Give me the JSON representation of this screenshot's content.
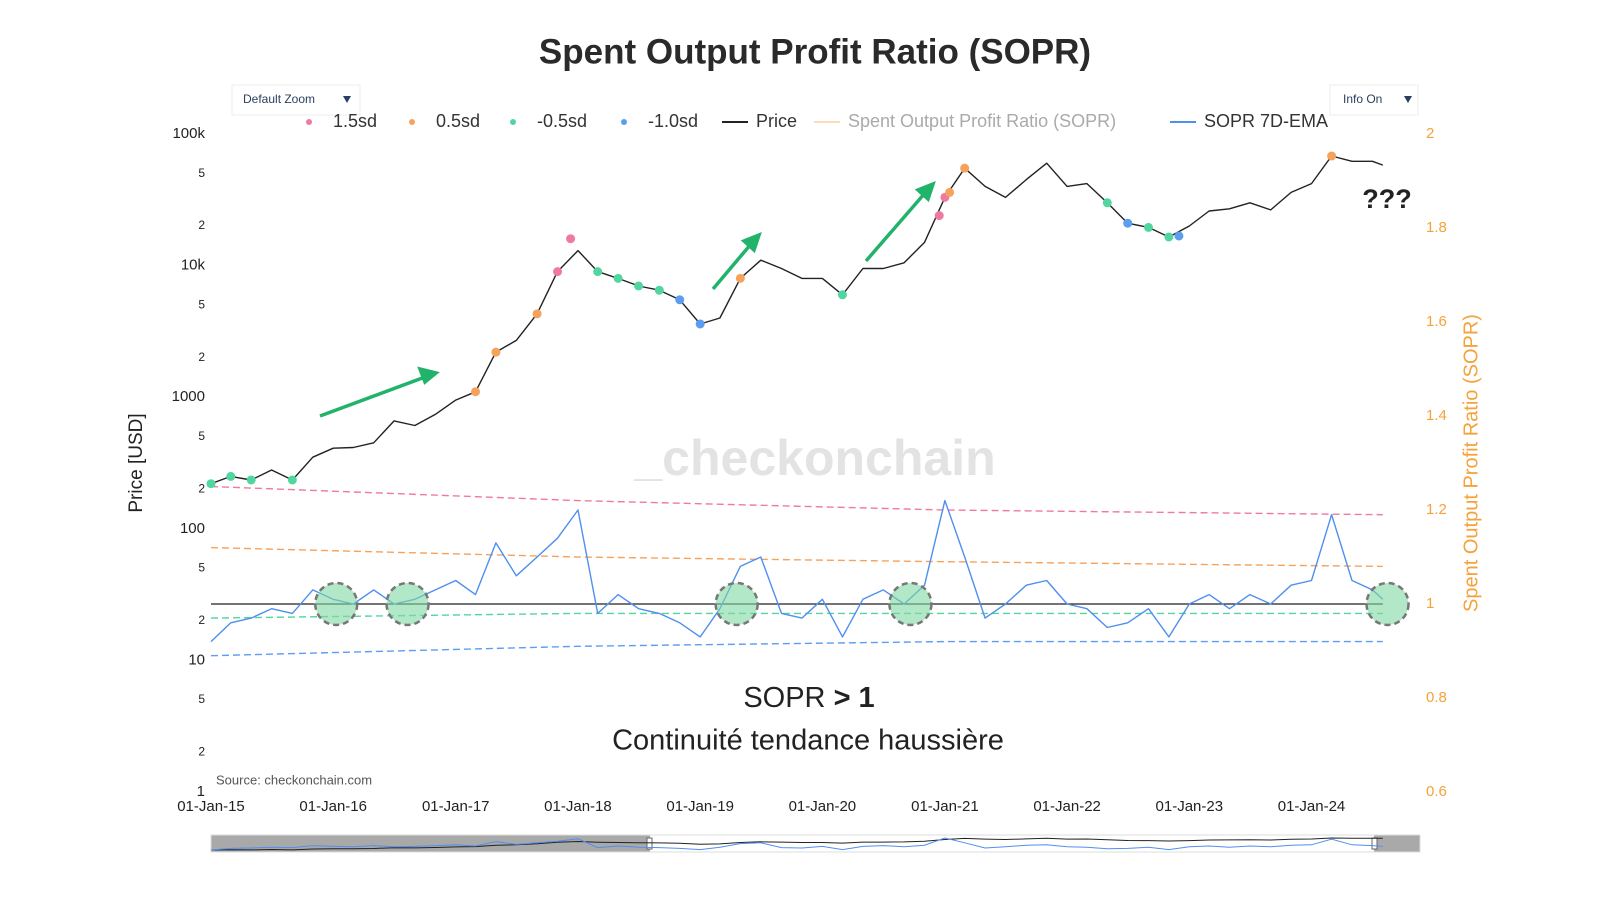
{
  "chart_data": {
    "type": "line",
    "title": "Spent Output Profit Ratio (SOPR)",
    "buttons": [
      "Default Zoom",
      "Info On"
    ],
    "yaxis_title": "Price [USD]",
    "y2axis_title": "Spent Output Profit Ratio (SOPR)",
    "source": "Source: checkonchain.com",
    "watermark": "_checkonchain",
    "annotations": {
      "question": "???",
      "sopr_label": "SOPR",
      "sopr_cond": "> 1",
      "trend": "Continuité tendance haussière"
    },
    "log_y": true,
    "xlim": [
      "2015-01-01",
      "2024-11-20"
    ],
    "xticks": [
      {
        "value": "2015-01-01",
        "label": "01-Jan-15"
      },
      {
        "value": "2016-01-01",
        "label": "01-Jan-16"
      },
      {
        "value": "2017-01-01",
        "label": "01-Jan-17"
      },
      {
        "value": "2018-01-01",
        "label": "01-Jan-18"
      },
      {
        "value": "2019-01-01",
        "label": "01-Jan-19"
      },
      {
        "value": "2020-01-01",
        "label": "01-Jan-20"
      },
      {
        "value": "2021-01-01",
        "label": "01-Jan-21"
      },
      {
        "value": "2022-01-01",
        "label": "01-Jan-22"
      },
      {
        "value": "2023-01-01",
        "label": "01-Jan-23"
      },
      {
        "value": "2024-01-01",
        "label": "01-Jan-24"
      }
    ],
    "ylim": [
      1,
      100000
    ],
    "yticks": [
      1,
      2,
      5,
      10,
      {
        "value": 20,
        "label": "2"
      },
      {
        "value": 50,
        "label": "5"
      },
      100,
      {
        "value": 200,
        "label": "2"
      },
      {
        "value": 500,
        "label": "5"
      },
      1000,
      {
        "value": 2000,
        "label": "2"
      },
      {
        "value": 5000,
        "label": "5"
      },
      {
        "value": 10000,
        "label": "10k"
      },
      {
        "value": 20000,
        "label": "2"
      },
      {
        "value": 50000,
        "label": "5"
      },
      {
        "value": 100000,
        "label": "100k"
      }
    ],
    "y2lim": [
      0.6,
      2
    ],
    "y2ticks": [
      0.6,
      0.8,
      1,
      1.2,
      1.4,
      1.6,
      1.8,
      2
    ],
    "y2_color": "#f5a23a",
    "hline": 1,
    "circles": {
      "x": [
        "2016-01-10",
        "2016-08-10",
        "2019-04-20",
        "2020-09-20",
        "2024-08-15"
      ],
      "color": "#7fd8a4"
    },
    "x": [
      "2015-01-01",
      "2015-03-01",
      "2015-05-01",
      "2015-07-01",
      "2015-09-01",
      "2015-11-01",
      "2016-01-01",
      "2016-03-01",
      "2016-05-01",
      "2016-07-01",
      "2016-09-01",
      "2016-11-01",
      "2017-01-01",
      "2017-03-01",
      "2017-05-01",
      "2017-07-01",
      "2017-09-01",
      "2017-11-01",
      "2018-01-01",
      "2018-03-01",
      "2018-05-01",
      "2018-07-01",
      "2018-09-01",
      "2018-11-01",
      "2019-01-01",
      "2019-03-01",
      "2019-05-01",
      "2019-07-01",
      "2019-09-01",
      "2019-11-01",
      "2020-01-01",
      "2020-03-01",
      "2020-05-01",
      "2020-07-01",
      "2020-09-01",
      "2020-11-01",
      "2021-01-01",
      "2021-03-01",
      "2021-05-01",
      "2021-07-01",
      "2021-09-01",
      "2021-11-01",
      "2022-01-01",
      "2022-03-01",
      "2022-05-01",
      "2022-07-01",
      "2022-09-01",
      "2022-11-01",
      "2023-01-01",
      "2023-03-01",
      "2023-05-01",
      "2023-07-01",
      "2023-09-01",
      "2023-11-01",
      "2024-01-01",
      "2024-03-01",
      "2024-05-01",
      "2024-07-01",
      "2024-08-01"
    ],
    "series": [
      {
        "name": "1.5sd",
        "color": "#ef7aa0",
        "mode": "markers",
        "axis": "y",
        "x": [
          "2017-11-01",
          "2017-12-10",
          "2020-12-15",
          "2021-01-01"
        ],
        "values": [
          9000,
          16000,
          24000,
          33000
        ],
        "band": {
          "x": [
            "2015-01-01",
            "2018-01-01",
            "2021-01-01",
            "2024-08-01"
          ],
          "values": [
            1.25,
            1.22,
            1.2,
            1.19
          ]
        }
      },
      {
        "name": "0.5sd",
        "color": "#f5a25d",
        "mode": "markers",
        "axis": "y",
        "x": [
          "2017-03-01",
          "2017-05-01",
          "2017-09-01",
          "2019-05-01",
          "2021-01-15",
          "2021-03-01",
          "2024-03-01"
        ],
        "values": [
          1100,
          2200,
          4300,
          8000,
          36000,
          55000,
          68000
        ],
        "band": {
          "x": [
            "2015-01-01",
            "2018-01-01",
            "2021-01-01",
            "2024-08-01"
          ],
          "values": [
            1.12,
            1.1,
            1.09,
            1.08
          ]
        }
      },
      {
        "name": "-0.5sd",
        "color": "#52d6a0",
        "mode": "markers",
        "axis": "y",
        "x": [
          "2015-01-01",
          "2015-03-01",
          "2015-05-01",
          "2015-09-01",
          "2018-03-01",
          "2018-05-01",
          "2018-07-01",
          "2018-09-01",
          "2020-03-01",
          "2022-05-01",
          "2022-09-01",
          "2022-11-01"
        ],
        "values": [
          220,
          250,
          235,
          235,
          9000,
          8000,
          7000,
          6500,
          6000,
          30000,
          19500,
          16500
        ],
        "band": {
          "x": [
            "2015-01-01",
            "2018-01-01",
            "2021-01-01",
            "2024-08-01"
          ],
          "values": [
            0.97,
            0.98,
            0.98,
            0.98
          ]
        }
      },
      {
        "name": "-1.0sd",
        "color": "#5b9ef0",
        "mode": "markers",
        "axis": "y",
        "x": [
          "2018-11-01",
          "2019-01-01",
          "2022-07-01",
          "2022-12-01"
        ],
        "values": [
          5500,
          3600,
          21000,
          16800
        ],
        "band": {
          "x": [
            "2015-01-01",
            "2018-01-01",
            "2021-01-01",
            "2024-08-01"
          ],
          "values": [
            0.89,
            0.91,
            0.92,
            0.92
          ]
        }
      },
      {
        "name": "Price",
        "color": "#222222",
        "axis": "y",
        "values": [
          220,
          250,
          235,
          280,
          235,
          350,
          410,
          415,
          450,
          660,
          610,
          740,
          950,
          1100,
          2200,
          2700,
          4300,
          9000,
          13000,
          9000,
          8000,
          7000,
          6500,
          5500,
          3600,
          4000,
          8000,
          11000,
          9500,
          8000,
          8000,
          6000,
          9500,
          9500,
          10500,
          15000,
          33000,
          55000,
          40000,
          33000,
          45000,
          60000,
          40000,
          42000,
          30000,
          21000,
          19500,
          16500,
          20000,
          26000,
          27000,
          30000,
          26500,
          36000,
          42000,
          68000,
          62000,
          62000,
          58000
        ]
      },
      {
        "name": "Spent Output Profit Ratio (SOPR)",
        "color": "#fbdcb8",
        "visible": false
      },
      {
        "name": "SOPR 7D-EMA",
        "color": "#4f8ff0",
        "axis": "y2",
        "values": [
          0.92,
          0.96,
          0.97,
          0.99,
          0.98,
          1.03,
          1.01,
          1.0,
          1.03,
          1.0,
          1.01,
          1.03,
          1.05,
          1.02,
          1.13,
          1.06,
          1.1,
          1.14,
          1.2,
          0.98,
          1.02,
          0.99,
          0.98,
          0.96,
          0.93,
          0.99,
          1.08,
          1.1,
          0.98,
          0.97,
          1.01,
          0.93,
          1.01,
          1.03,
          1.0,
          1.04,
          1.22,
          1.1,
          0.97,
          1.0,
          1.04,
          1.05,
          1.0,
          0.99,
          0.95,
          0.96,
          0.99,
          0.93,
          1.0,
          1.02,
          0.99,
          1.02,
          1.0,
          1.04,
          1.05,
          1.19,
          1.05,
          1.03,
          1.01
        ]
      }
    ]
  }
}
